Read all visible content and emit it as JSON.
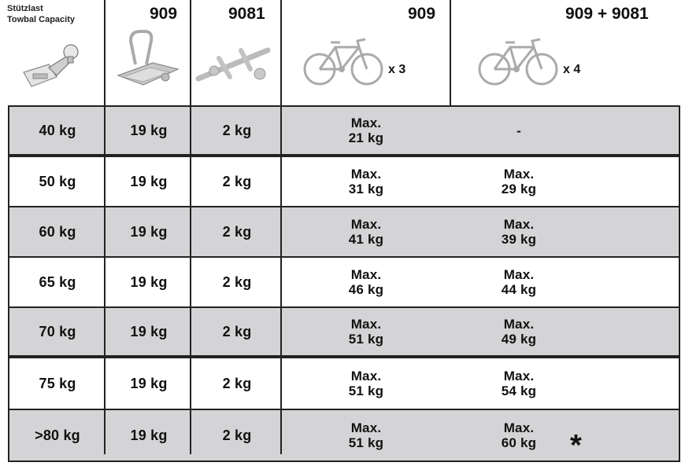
{
  "header": {
    "capacity_label_line1": "Stützlast",
    "capacity_label_line2": "Towbal Capacity",
    "col_909": "909",
    "col_9081": "9081",
    "col_909_bikes": "909",
    "col_909_9081_bikes": "909 + 9081",
    "bikes_x3": "x 3",
    "bikes_x4": "x 4",
    "icons": [
      "towbar-hitch-icon",
      "bike-carrier-909-icon",
      "extension-9081-icon",
      "bicycle-icon",
      "bicycle-icon"
    ]
  },
  "rows": [
    {
      "capacity": "40 kg",
      "c909": "19 kg",
      "c9081": "2 kg",
      "b3_max": "Max.",
      "b3_val": "21 kg",
      "b4_max": "",
      "b4_val": "-",
      "star": ""
    },
    {
      "capacity": "50 kg",
      "c909": "19 kg",
      "c9081": "2 kg",
      "b3_max": "Max.",
      "b3_val": "31 kg",
      "b4_max": "Max.",
      "b4_val": "29 kg",
      "star": ""
    },
    {
      "capacity": "60 kg",
      "c909": "19 kg",
      "c9081": "2 kg",
      "b3_max": "Max.",
      "b3_val": "41 kg",
      "b4_max": "Max.",
      "b4_val": "39 kg",
      "star": ""
    },
    {
      "capacity": "65 kg",
      "c909": "19 kg",
      "c9081": "2 kg",
      "b3_max": "Max.",
      "b3_val": "46 kg",
      "b4_max": "Max.",
      "b4_val": "44 kg",
      "star": ""
    },
    {
      "capacity": "70 kg",
      "c909": "19 kg",
      "c9081": "2 kg",
      "b3_max": "Max.",
      "b3_val": "51 kg",
      "b4_max": "Max.",
      "b4_val": "49 kg",
      "star": ""
    },
    {
      "capacity": "75 kg",
      "c909": "19 kg",
      "c9081": "2 kg",
      "b3_max": "Max.",
      "b3_val": "51 kg",
      "b4_max": "Max.",
      "b4_val": "54 kg",
      "star": ""
    },
    {
      "capacity": ">80 kg",
      "c909": "19 kg",
      "c9081": "2 kg",
      "b3_max": "Max.",
      "b3_val": "51 kg",
      "b4_max": "Max.",
      "b4_val": "60 kg",
      "star": "*"
    }
  ],
  "colors": {
    "shaded_row": "#d4d4d6",
    "plain_row": "#ffffff",
    "lines": "#222222"
  }
}
